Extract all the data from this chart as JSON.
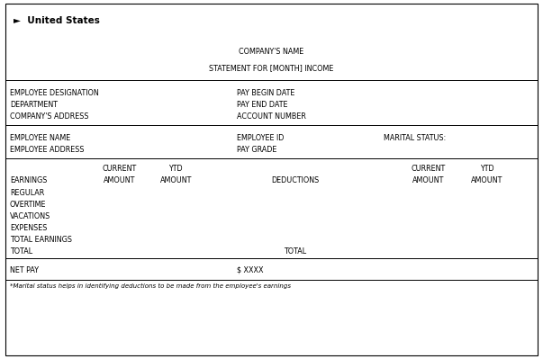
{
  "title_country": "►  United States",
  "company_name": "COMPANY'S NAME",
  "statement": "STATEMENT FOR [MONTH] INCOME",
  "row1_left": [
    "EMPLOYEE DESIGNATION",
    "DEPARTMENT",
    "COMPANY'S ADDRESS"
  ],
  "row1_right": [
    "PAY BEGIN DATE",
    "PAY END DATE",
    "ACCOUNT NUMBER"
  ],
  "row2_left": [
    "EMPLOYEE NAME",
    "EMPLOYEE ADDRESS"
  ],
  "row2_mid": [
    "EMPLOYEE ID",
    "PAY GRADE"
  ],
  "row2_right": "MARITAL STATUS:",
  "earnings_header_col1": "CURRENT",
  "earnings_header_col2": "YTD",
  "earnings_header_col1b": "AMOUNT",
  "earnings_header_col2b": "AMOUNT",
  "earnings_label": "EARNINGS",
  "deductions_label": "DEDUCTIONS",
  "deductions_header_col1": "CURRENT",
  "deductions_header_col2": "YTD",
  "deductions_header_col1b": "AMOUNT",
  "deductions_header_col2b": "AMOUNT",
  "earnings_rows": [
    "REGULAR",
    "OVERTIME",
    "VACATIONS",
    "EXPENSES",
    "TOTAL EARNINGS"
  ],
  "total_left": "TOTAL",
  "total_right": "TOTAL",
  "net_pay_label": "NET PAY",
  "net_pay_value": "$ XXXX",
  "footnote": "*Marital status helps in identifying deductions to be made from the employee's earnings",
  "bg_color": "#ffffff",
  "border_color": "#000000",
  "text_color": "#000000",
  "font_size": 5.8,
  "title_font_size": 7.5
}
